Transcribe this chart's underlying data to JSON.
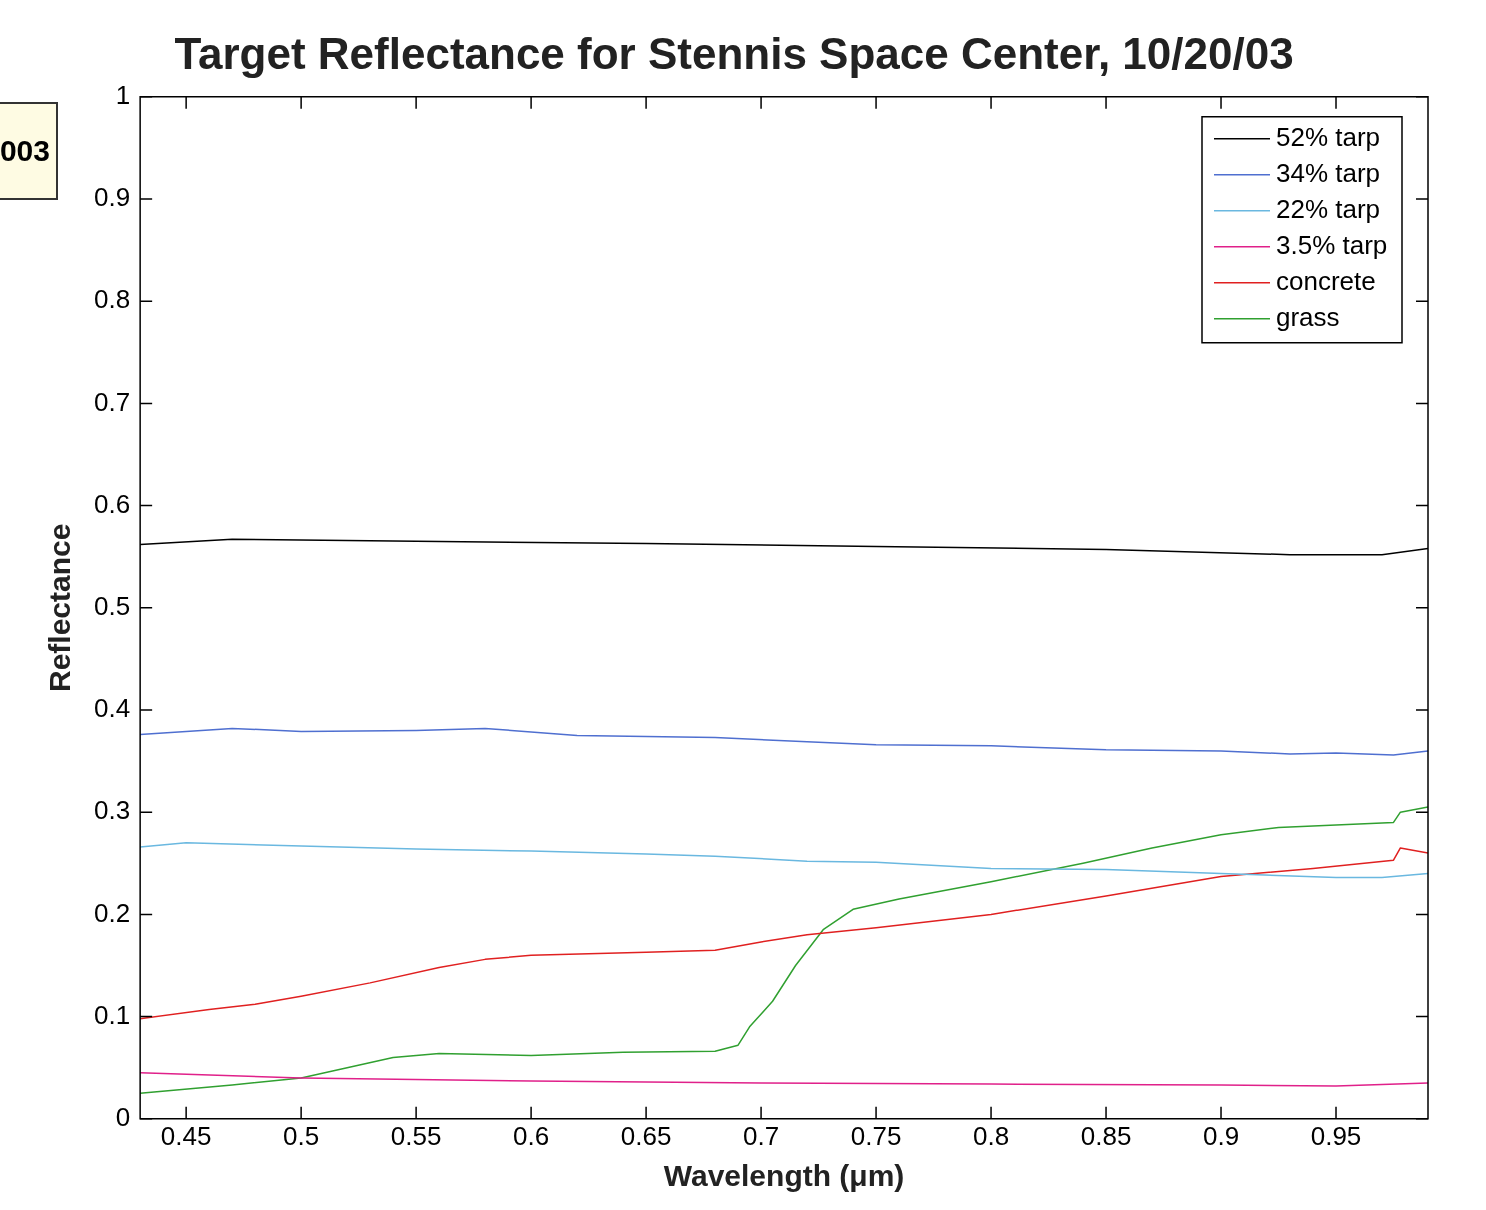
{
  "chart_data": {
    "type": "line",
    "title": "Target Reflectance for Stennis Space Center, 10/20/03",
    "xlabel": "Wavelength (μm)",
    "ylabel": "Reflectance",
    "annotations": [
      "003"
    ],
    "xlim": [
      0.43,
      0.99
    ],
    "xticks": [
      0.45,
      0.5,
      0.55,
      0.6,
      0.65,
      0.7,
      0.75,
      0.8,
      0.85,
      0.9,
      0.95
    ],
    "ylim": [
      0,
      1
    ],
    "yticks": [
      0,
      0.1,
      0.2,
      0.3,
      0.4,
      0.5,
      0.6,
      0.7,
      0.8,
      0.9,
      1
    ],
    "grid": false,
    "legend": "top right",
    "marker": "none",
    "line_style": "solid",
    "series": [
      {
        "name": "52% tarp",
        "color": "#000000",
        "x": [
          0.43,
          0.47,
          0.55,
          0.65,
          0.75,
          0.85,
          0.93,
          0.97,
          0.99
        ],
        "values": [
          0.562,
          0.567,
          0.565,
          0.563,
          0.56,
          0.557,
          0.552,
          0.552,
          0.558
        ]
      },
      {
        "name": "34% tarp",
        "color": "#4f6fd0",
        "x": [
          0.43,
          0.47,
          0.5,
          0.55,
          0.58,
          0.62,
          0.68,
          0.72,
          0.75,
          0.8,
          0.85,
          0.9,
          0.93,
          0.95,
          0.975,
          0.99
        ],
        "values": [
          0.376,
          0.382,
          0.379,
          0.38,
          0.382,
          0.375,
          0.373,
          0.369,
          0.366,
          0.365,
          0.361,
          0.36,
          0.357,
          0.358,
          0.356,
          0.36
        ]
      },
      {
        "name": "22% tarp",
        "color": "#6ab8e0",
        "x": [
          0.43,
          0.45,
          0.5,
          0.55,
          0.6,
          0.65,
          0.68,
          0.72,
          0.75,
          0.8,
          0.85,
          0.9,
          0.95,
          0.97,
          0.99
        ],
        "values": [
          0.266,
          0.27,
          0.267,
          0.264,
          0.262,
          0.259,
          0.257,
          0.252,
          0.251,
          0.245,
          0.244,
          0.24,
          0.236,
          0.236,
          0.24
        ]
      },
      {
        "name": "3.5% tarp",
        "color": "#e0208a",
        "x": [
          0.43,
          0.5,
          0.6,
          0.7,
          0.8,
          0.9,
          0.95,
          0.99
        ],
        "values": [
          0.045,
          0.04,
          0.037,
          0.035,
          0.034,
          0.033,
          0.032,
          0.035
        ]
      },
      {
        "name": "concrete",
        "color": "#e02020",
        "x": [
          0.43,
          0.46,
          0.48,
          0.5,
          0.53,
          0.56,
          0.58,
          0.6,
          0.65,
          0.68,
          0.7,
          0.72,
          0.75,
          0.8,
          0.85,
          0.9,
          0.94,
          0.975,
          0.978,
          0.99
        ],
        "values": [
          0.098,
          0.107,
          0.112,
          0.12,
          0.133,
          0.148,
          0.156,
          0.16,
          0.163,
          0.165,
          0.173,
          0.18,
          0.187,
          0.2,
          0.218,
          0.237,
          0.245,
          0.253,
          0.265,
          0.26
        ]
      },
      {
        "name": "grass",
        "color": "#30a030",
        "x": [
          0.43,
          0.47,
          0.5,
          0.52,
          0.54,
          0.56,
          0.6,
          0.64,
          0.68,
          0.69,
          0.695,
          0.705,
          0.715,
          0.727,
          0.74,
          0.76,
          0.8,
          0.84,
          0.87,
          0.9,
          0.925,
          0.975,
          0.978,
          0.99
        ],
        "values": [
          0.025,
          0.033,
          0.04,
          0.05,
          0.06,
          0.064,
          0.062,
          0.065,
          0.066,
          0.072,
          0.09,
          0.115,
          0.15,
          0.185,
          0.205,
          0.215,
          0.232,
          0.25,
          0.265,
          0.278,
          0.285,
          0.29,
          0.3,
          0.305
        ]
      }
    ]
  }
}
